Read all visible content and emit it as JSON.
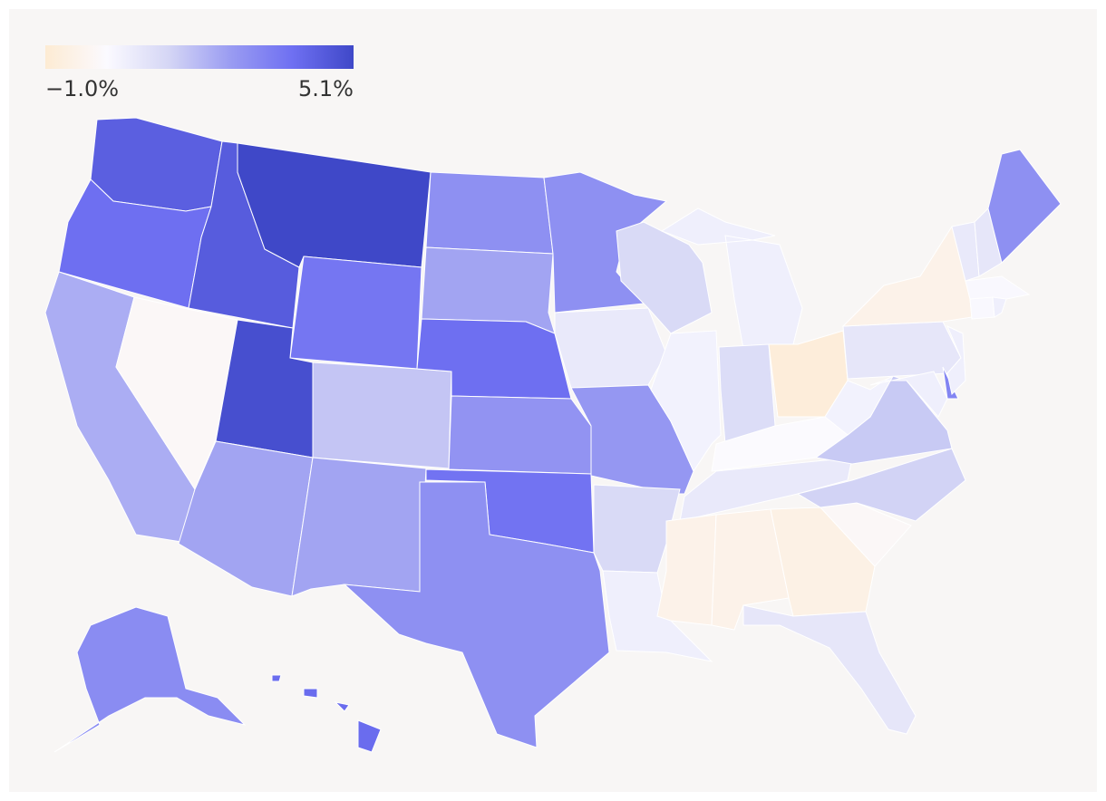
{
  "chart_data": {
    "type": "choropleth",
    "values": [
      4.4,
      3.9,
      2.3,
      0.0,
      4.5,
      5.1,
      3.7,
      4.9,
      2.5,
      1.8,
      2.5,
      3.0,
      2.5,
      3.9,
      2.9,
      3.8,
      3.0,
      3.0,
      0.8,
      2.8,
      1.3,
      0.6,
      1.3,
      0.5,
      0.6,
      1.2,
      -0.8,
      0.2,
      0.8,
      -0.4,
      -0.4,
      -0.5,
      0.9,
      0.0,
      1.5,
      1.7,
      0.5,
      0.9,
      -0.4,
      0.6,
      3.3,
      0.6,
      0.8,
      0.9,
      3.0,
      0.3,
      0.3,
      0.6,
      3.1,
      4.0
    ],
    "colorbar": {
      "ticks": [
        {
          "value": -1.0,
          "label": "−1.0%"
        },
        {
          "value": 5.1,
          "label": "5.1%"
        }
      ],
      "colors": [
        "#fdebd3",
        "#fbfaff",
        "#d5d6f5",
        "#9a9cf2",
        "#6f70f2",
        "#3f48c8"
      ]
    }
  }
}
